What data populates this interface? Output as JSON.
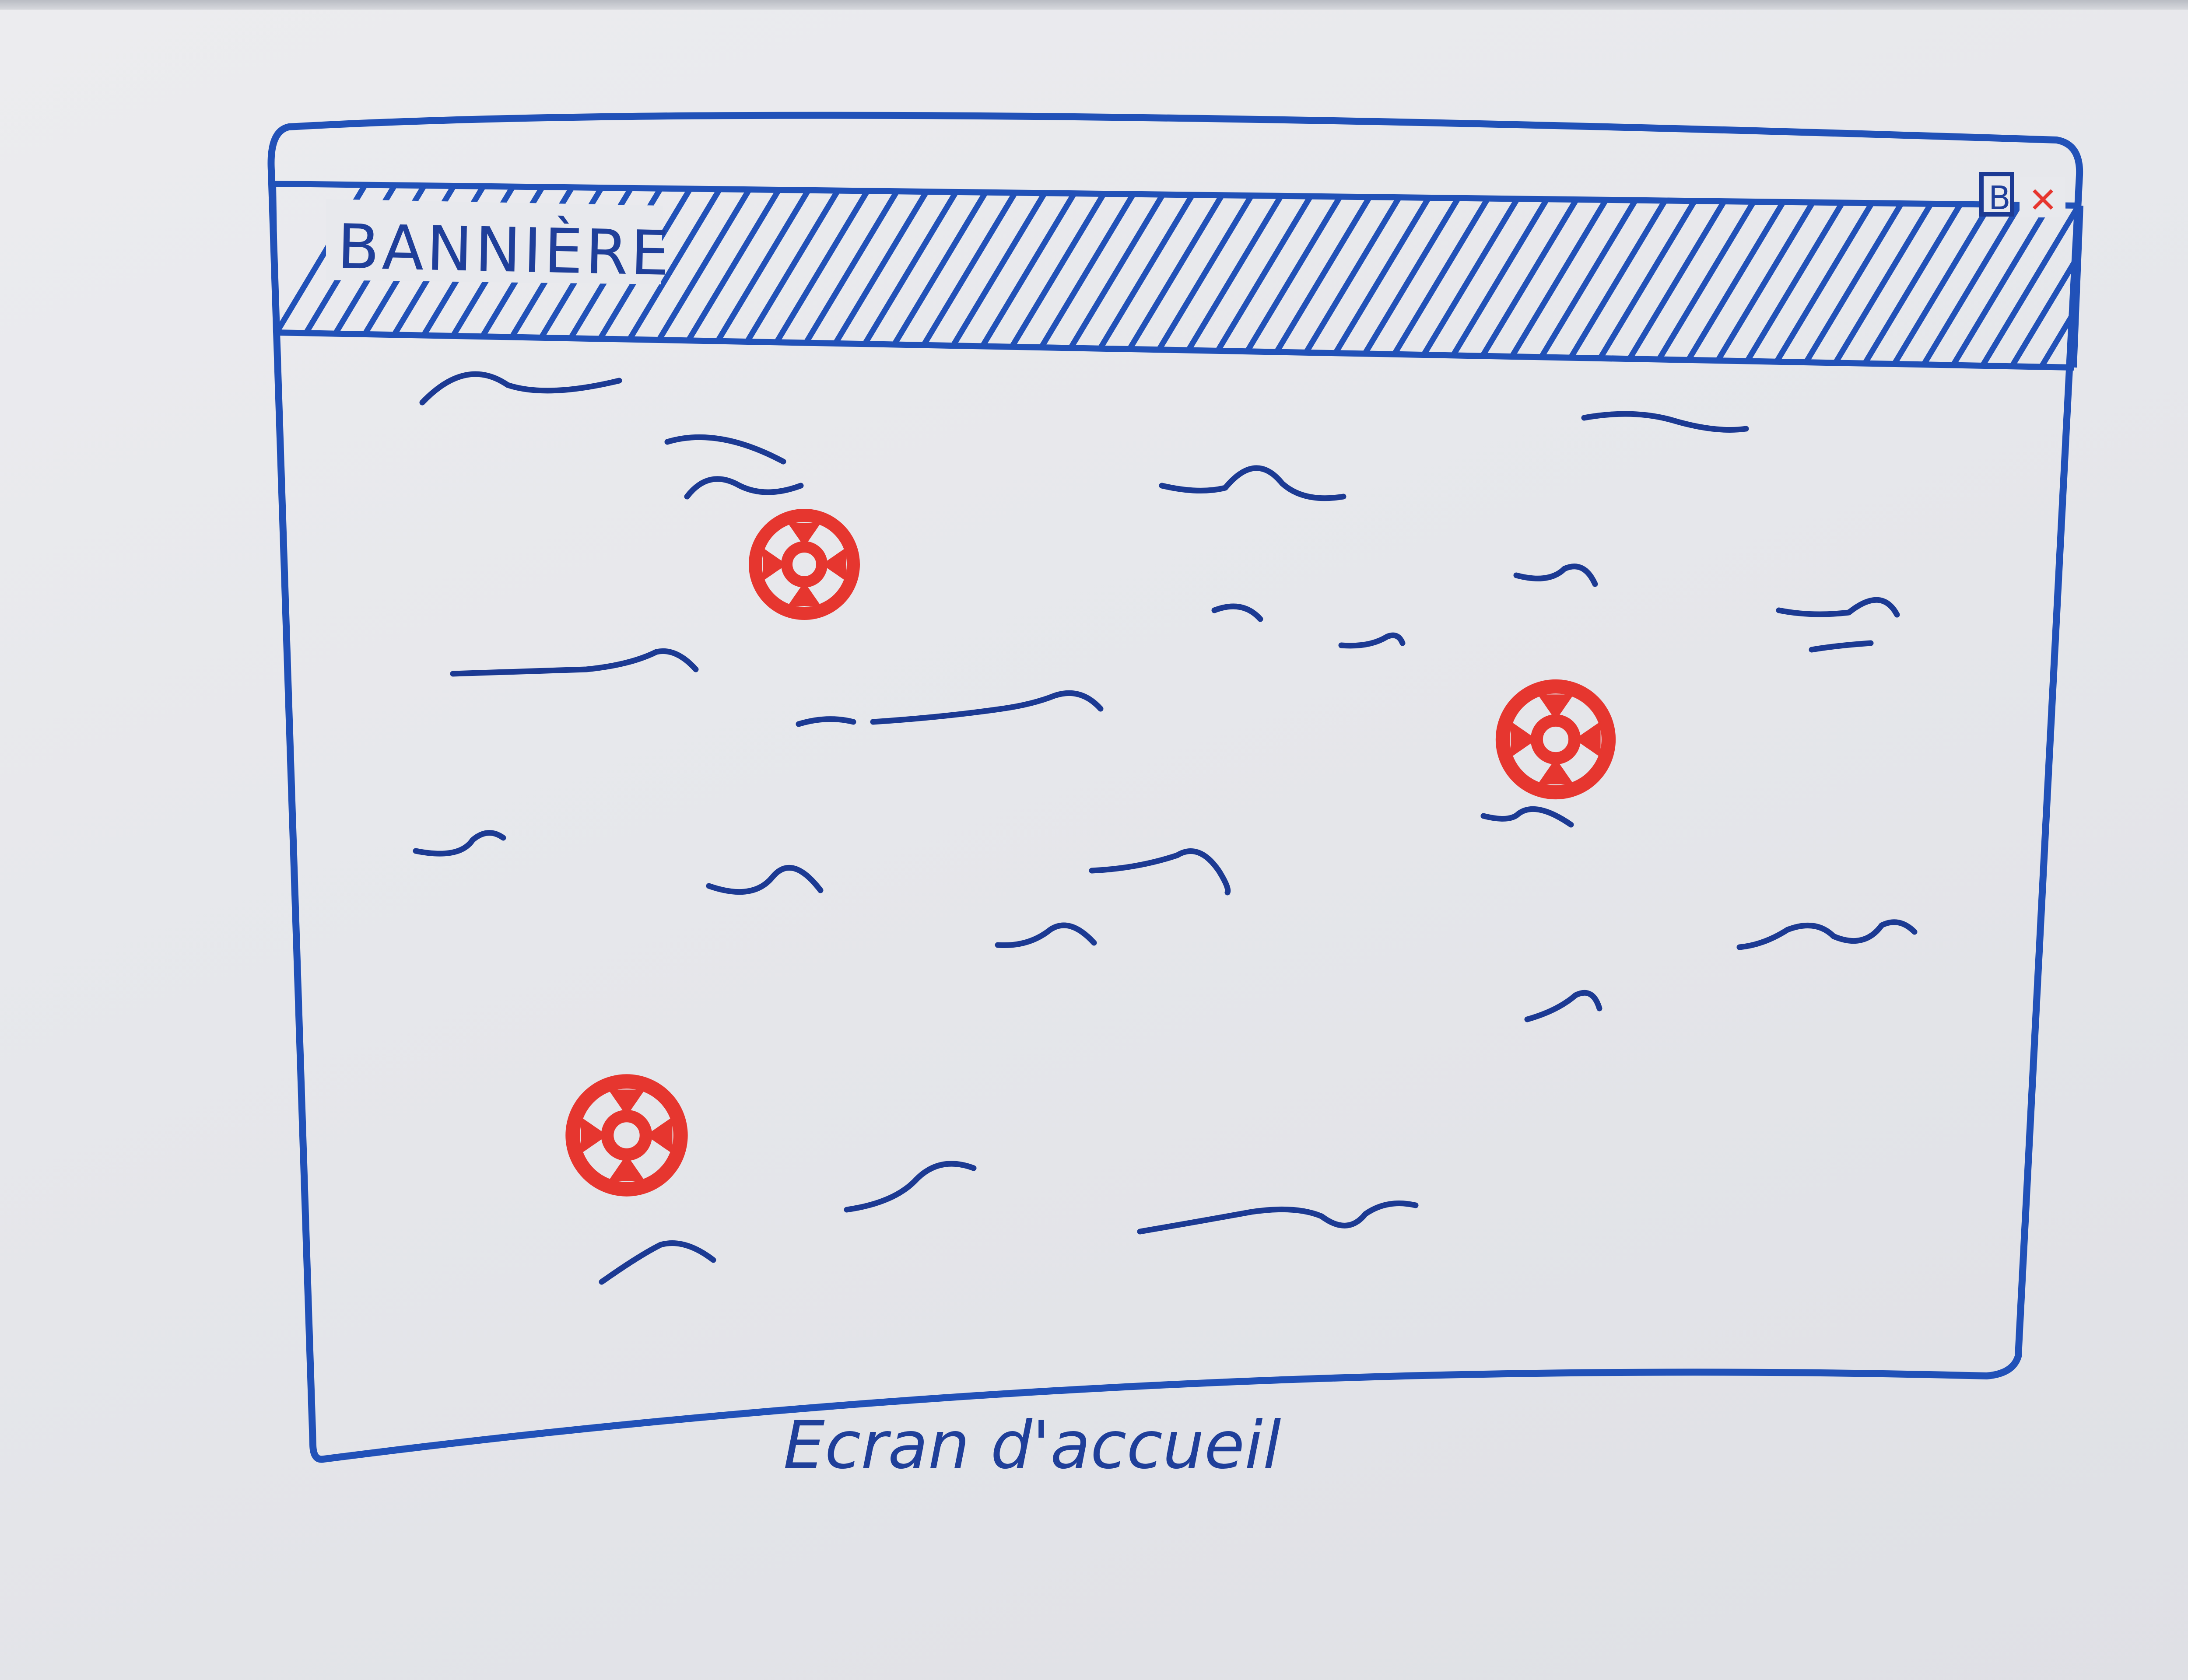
{
  "banner": {
    "title": "BANNIÈRE",
    "button_glyph": "B",
    "close_glyph": "✕"
  },
  "caption": "Ecran d'accueil",
  "icons": {
    "close": "close-icon",
    "window_button": "window-button-icon",
    "lifebuoy": "lifebuoy-icon"
  },
  "colors": {
    "blue_marker": "#2151b8",
    "dark_blue_marker": "#1c3a93",
    "red_marker": "#e6362f",
    "whiteboard": "#e7e8ec"
  }
}
